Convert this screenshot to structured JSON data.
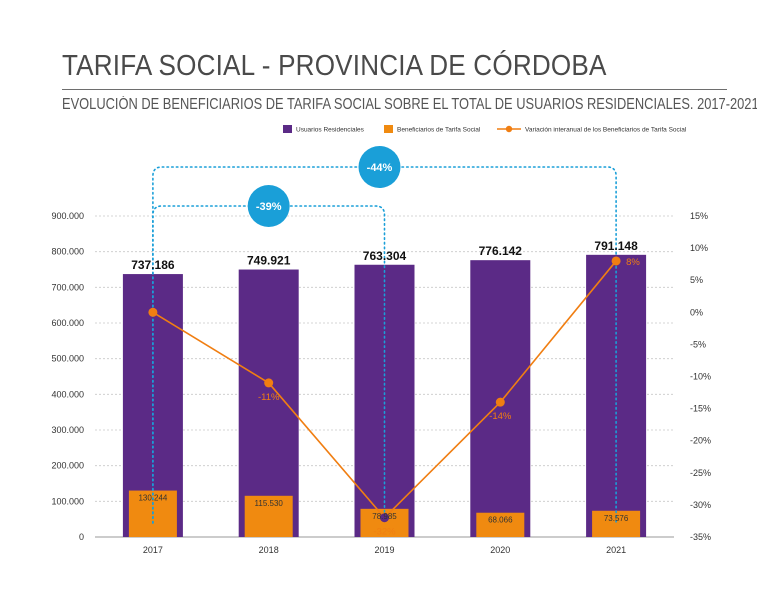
{
  "header": {
    "title": "TARIFA SOCIAL - PROVINCIA DE CÓRDOBA",
    "subtitle": "EVOLUCIÓN DE BENEFICIARIOS DE TARIFA SOCIAL SOBRE EL TOTAL DE USUARIOS RESIDENCIALES. 2017-2021"
  },
  "colors": {
    "usuarios": "#5b2a86",
    "beneficiarios": "#f08a10",
    "variacion": "#f07e12",
    "callout": "#1a9fd8",
    "grid": "#c8c8c8"
  },
  "chart_data": {
    "type": "bar",
    "categories": [
      "2017",
      "2018",
      "2019",
      "2020",
      "2021"
    ],
    "series": [
      {
        "name": "Usuarios Residenciales",
        "type": "bar",
        "axis": "left",
        "values": [
          737186,
          749921,
          763304,
          776142,
          791148
        ],
        "labels": [
          "737.186",
          "749.921",
          "763.304",
          "776.142",
          "791.148"
        ]
      },
      {
        "name": "Beneficiarios de Tarifa Social",
        "type": "bar",
        "axis": "left",
        "values": [
          130244,
          115530,
          78985,
          68066,
          73576
        ],
        "labels": [
          "130.244",
          "115.530",
          "78.985",
          "68.066",
          "73.576"
        ]
      },
      {
        "name": "Variación interanual de los Beneficiarios de Tarifa Social",
        "type": "line",
        "axis": "right",
        "values": [
          0,
          -11,
          -32,
          -14,
          8
        ],
        "labels": [
          "",
          "-11%",
          "-32%",
          "-14%",
          "8%"
        ]
      }
    ],
    "left_axis": {
      "ylim": [
        0,
        900000
      ],
      "ticks": [
        0,
        100000,
        200000,
        300000,
        400000,
        500000,
        600000,
        700000,
        800000,
        900000
      ],
      "tick_labels": [
        "0",
        "100.000",
        "200.000",
        "300.000",
        "400.000",
        "500.000",
        "600.000",
        "700.000",
        "800.000",
        "900.000"
      ]
    },
    "right_axis": {
      "ylim": [
        -35,
        15
      ],
      "ticks": [
        15,
        10,
        5,
        0,
        -5,
        -10,
        -15,
        -20,
        -25,
        -30,
        -35
      ],
      "tick_labels": [
        "15%",
        "10%",
        "5%",
        "0%",
        "-5%",
        "-10%",
        "-15%",
        "-20%",
        "-25%",
        "-30%",
        "-35%"
      ]
    },
    "grid": true,
    "legend": "top-right",
    "annotations": [
      {
        "text": "-39%",
        "from": "2017",
        "to": "2019"
      },
      {
        "text": "-44%",
        "from": "2017",
        "to": "2021"
      }
    ]
  }
}
